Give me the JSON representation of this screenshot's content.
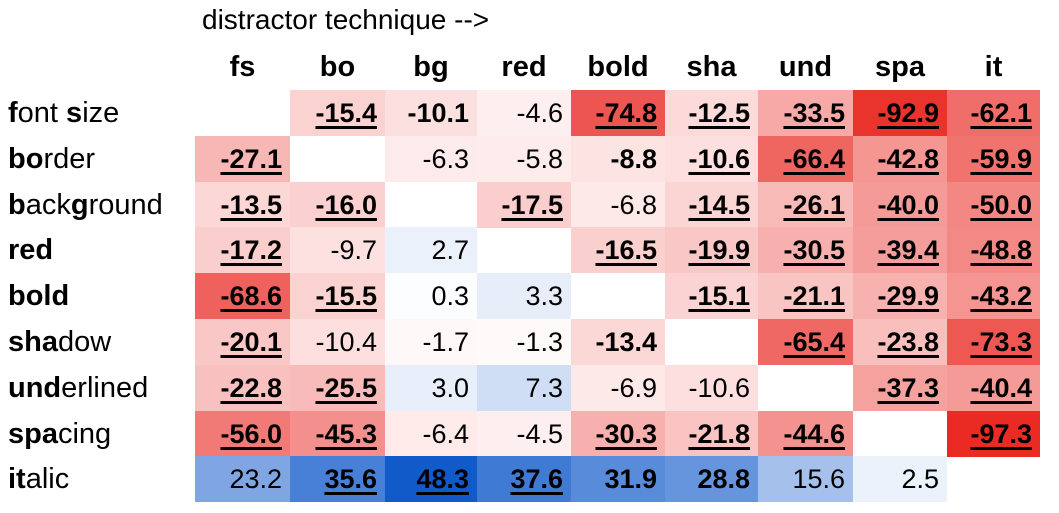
{
  "chart_data": {
    "type": "heatmap",
    "title": "distractor technique -->",
    "columns": [
      "fs",
      "bo",
      "bg",
      "red",
      "bold",
      "sha",
      "und",
      "spa",
      "it"
    ],
    "rows": [
      {
        "bold_part": "f",
        "rest": "ont ",
        "bold_part2": "s",
        "rest2": "ize"
      },
      {
        "bold_part": "bo",
        "rest": "rder",
        "bold_part2": "",
        "rest2": ""
      },
      {
        "bold_part": "b",
        "rest": "ack",
        "bold_part2": "g",
        "rest2": "round"
      },
      {
        "bold_part": "red",
        "rest": "",
        "bold_part2": "",
        "rest2": ""
      },
      {
        "bold_part": "bold",
        "rest": "",
        "bold_part2": "",
        "rest2": ""
      },
      {
        "bold_part": "sha",
        "rest": "dow",
        "bold_part2": "",
        "rest2": ""
      },
      {
        "bold_part": "und",
        "rest": "erlined",
        "bold_part2": "",
        "rest2": ""
      },
      {
        "bold_part": "spa",
        "rest": "cing",
        "bold_part2": "",
        "rest2": ""
      },
      {
        "bold_part": "it",
        "rest": "alic",
        "bold_part2": "",
        "rest2": ""
      }
    ],
    "values": [
      [
        null,
        -15.4,
        -10.1,
        -4.6,
        -74.8,
        -12.5,
        -33.5,
        -92.9,
        -62.1
      ],
      [
        -27.1,
        null,
        -6.3,
        -5.8,
        -8.8,
        -10.6,
        -66.4,
        -42.8,
        -59.9
      ],
      [
        -13.5,
        -16.0,
        null,
        -17.5,
        -6.8,
        -14.5,
        -26.1,
        -40.0,
        -50.0
      ],
      [
        -17.2,
        -9.7,
        2.7,
        null,
        -16.5,
        -19.9,
        -30.5,
        -39.4,
        -48.8
      ],
      [
        -68.6,
        -15.5,
        0.3,
        3.3,
        null,
        -15.1,
        -21.1,
        -29.9,
        -43.2
      ],
      [
        -20.1,
        -10.4,
        -1.7,
        -1.3,
        -13.4,
        null,
        -65.4,
        -23.8,
        -73.3
      ],
      [
        -22.8,
        -25.5,
        3.0,
        7.3,
        -6.9,
        -10.6,
        null,
        -37.3,
        -40.4
      ],
      [
        -56.0,
        -45.3,
        -6.4,
        -4.5,
        -30.3,
        -21.8,
        -44.6,
        null,
        -97.3
      ],
      [
        23.2,
        35.6,
        48.3,
        37.6,
        31.9,
        28.8,
        15.6,
        2.5,
        null
      ]
    ],
    "bold": [
      [
        0,
        1,
        1,
        0,
        1,
        1,
        1,
        1,
        1
      ],
      [
        1,
        0,
        0,
        0,
        1,
        1,
        1,
        1,
        1
      ],
      [
        1,
        1,
        0,
        1,
        0,
        1,
        1,
        1,
        1
      ],
      [
        1,
        0,
        0,
        0,
        1,
        1,
        1,
        1,
        1
      ],
      [
        1,
        1,
        0,
        0,
        0,
        1,
        1,
        1,
        1
      ],
      [
        1,
        0,
        0,
        0,
        1,
        0,
        1,
        1,
        1
      ],
      [
        1,
        1,
        0,
        0,
        0,
        0,
        0,
        1,
        1
      ],
      [
        1,
        1,
        0,
        0,
        1,
        1,
        1,
        0,
        1
      ],
      [
        0,
        1,
        1,
        1,
        1,
        1,
        0,
        0,
        0
      ]
    ],
    "underline": [
      [
        0,
        1,
        0,
        0,
        1,
        1,
        1,
        1,
        1
      ],
      [
        1,
        0,
        0,
        0,
        0,
        1,
        1,
        1,
        1
      ],
      [
        1,
        1,
        0,
        1,
        0,
        1,
        1,
        1,
        1
      ],
      [
        1,
        0,
        0,
        0,
        1,
        1,
        1,
        1,
        1
      ],
      [
        1,
        1,
        0,
        0,
        0,
        1,
        1,
        1,
        1
      ],
      [
        1,
        0,
        0,
        0,
        0,
        0,
        1,
        1,
        1
      ],
      [
        1,
        1,
        0,
        0,
        0,
        0,
        0,
        1,
        1
      ],
      [
        1,
        1,
        0,
        0,
        1,
        1,
        1,
        0,
        1
      ],
      [
        0,
        1,
        1,
        1,
        0,
        0,
        0,
        0,
        0
      ]
    ],
    "color_scale": {
      "negative": "#e8261f",
      "positive": "#0a55c8",
      "neutral": "#ffffff",
      "vmin": -100,
      "vmax": 50
    },
    "grid": false,
    "legend": "none"
  }
}
